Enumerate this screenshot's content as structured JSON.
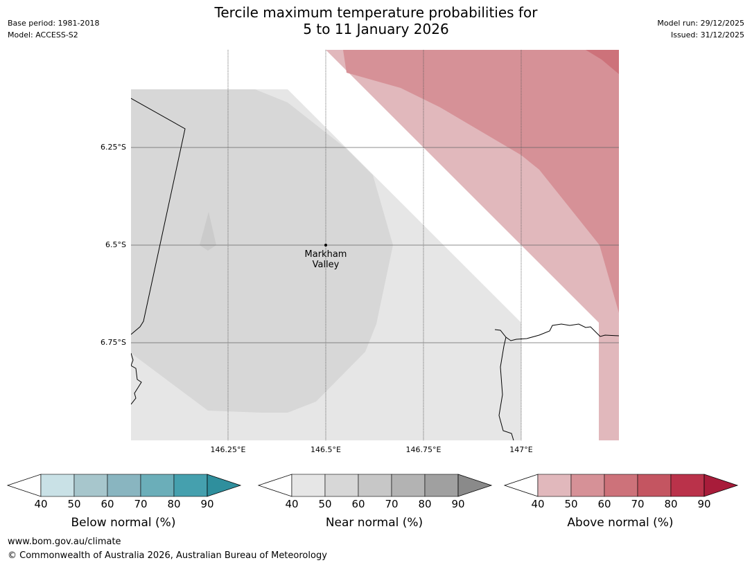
{
  "header": {
    "title_line1": "Tercile maximum temperature probabilities for",
    "title_line2": "5 to 11 January 2026",
    "base_period": "Base period: 1981-2018",
    "model": "Model: ACCESS-S2",
    "model_run": "Model run: 29/12/2025",
    "issued": "Issued: 31/12/2025"
  },
  "map": {
    "x_ticks": [
      "146.25°E",
      "146.5°E",
      "146.75°E",
      "147°E"
    ],
    "y_ticks": [
      "6.25°S",
      "6.5°S",
      "6.75°S"
    ],
    "place": {
      "line1": "Markham",
      "line2": "Valley"
    }
  },
  "colorbars": [
    {
      "label": "Below normal (%)",
      "ticks": [
        "40",
        "50",
        "60",
        "70",
        "80",
        "90"
      ],
      "colors": [
        "#c9e1e6",
        "#a7c6cc",
        "#89b5c0",
        "#6baeb9",
        "#45a0ae",
        "#2f8f9d"
      ]
    },
    {
      "label": "Near normal (%)",
      "ticks": [
        "40",
        "50",
        "60",
        "70",
        "80",
        "90"
      ],
      "colors": [
        "#e6e6e6",
        "#d7d7d7",
        "#c7c7c7",
        "#b3b3b3",
        "#a0a0a0",
        "#8a8a8a"
      ]
    },
    {
      "label": "Above normal (%)",
      "ticks": [
        "40",
        "50",
        "60",
        "70",
        "80",
        "90"
      ],
      "colors": [
        "#e1b8bc",
        "#d69197",
        "#cd727a",
        "#c45561",
        "#ba324a",
        "#a81c3a"
      ]
    }
  ],
  "footer": {
    "url": "www.bom.gov.au/climate",
    "copyright": "© Commonwealth of Australia 2026, Australian Bureau of Meteorology"
  }
}
